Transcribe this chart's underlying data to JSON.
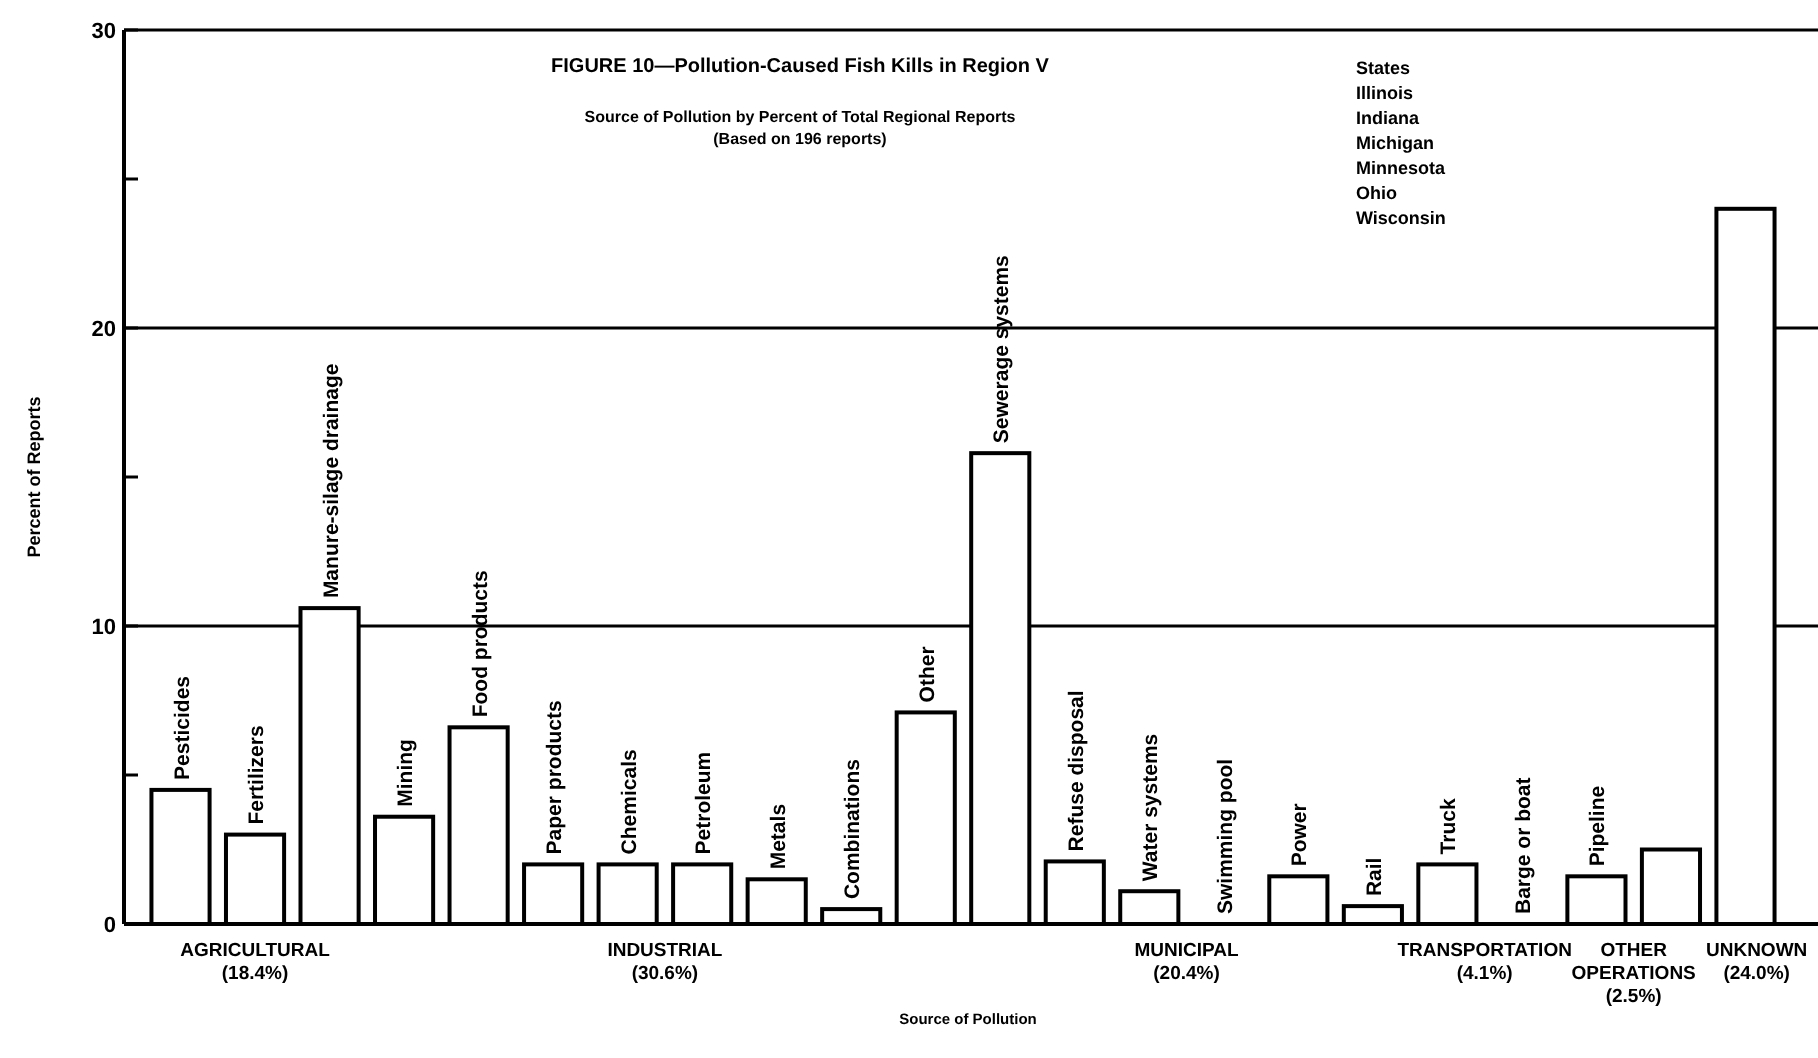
{
  "chart_data": {
    "type": "bar",
    "title": "FIGURE 10—Pollution-Caused Fish Kills in Region V",
    "subtitle": "Source of Pollution by Percent of Total Regional Reports\n(Based on 196 reports)",
    "xlabel": "Source of Pollution",
    "ylabel": "Percent of Reports",
    "categories": [
      "Pesticides",
      "Fertilizers",
      "Manure-silage drainage",
      "Mining",
      "Food products",
      "Paper products",
      "Chemicals",
      "Petroleum",
      "Metals",
      "Combinations",
      "Other",
      "Sewerage systems",
      "Refuse disposal",
      "Water systems",
      "Swimming pool",
      "Power",
      "Rail",
      "Truck",
      "Barge or boat",
      "Pipeline",
      null,
      null
    ],
    "values": [
      4.5,
      3.0,
      10.6,
      3.6,
      6.6,
      2.0,
      2.0,
      2.0,
      1.5,
      0.5,
      7.1,
      15.8,
      2.1,
      1.1,
      0,
      1.6,
      0.6,
      2.0,
      0,
      1.6,
      2.5,
      24.0
    ],
    "color": "#ffffff",
    "ylim": [
      0,
      30
    ],
    "yticks": [
      0,
      {
        "value": 5,
        "label": null
      },
      10,
      {
        "value": 15,
        "label": null
      },
      20,
      {
        "value": 25,
        "label": null
      },
      30
    ],
    "grid": "y",
    "annotations": [
      "States\nIllinois\nIndiana\nMichigan\nMinnesota\nOhio\nWisconsin",
      "AGRICULTURAL\n(18.4%)",
      "INDUSTRIAL\n(30.6%)",
      "MUNICIPAL\n(20.4%)",
      "TRANSPORTATION\n(4.1%)",
      "OTHER\nOPERATIONS\n(2.5%)",
      "UNKNOWN\n(24.0%)"
    ]
  }
}
